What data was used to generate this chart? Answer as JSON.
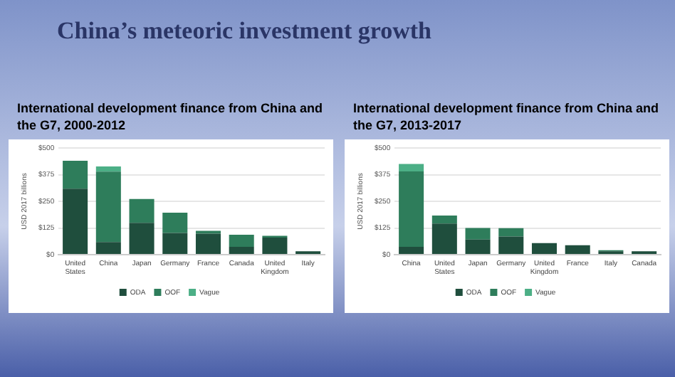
{
  "chart_data": [
    {
      "type": "bar",
      "title": "China’s meteoric investment growth",
      "subtitle": "International development finance from China and the G7, 2000-2012",
      "ylabel": "USD 2017 billions",
      "stacked": true,
      "grid": "y",
      "legend": "bottom",
      "categories": [
        "United States",
        "China",
        "Japan",
        "Germany",
        "France",
        "Canada",
        "United Kingdom",
        "Italy"
      ],
      "series": [
        {
          "name": "ODA",
          "color": "#1f4e3d",
          "values": [
            309,
            59,
            149,
            102,
            98,
            37,
            80,
            16
          ]
        },
        {
          "name": "OOF",
          "color": "#2e7d5b",
          "values": [
            131,
            330,
            112,
            95,
            14,
            56,
            8,
            0
          ]
        },
        {
          "name": "Vague",
          "color": "#4caf86",
          "values": [
            0,
            24,
            0,
            0,
            0,
            0,
            0,
            0
          ]
        }
      ],
      "ylim": [
        0,
        500
      ],
      "yticks": [
        {
          "value": 0,
          "label": "$0"
        },
        {
          "value": 125,
          "label": "$125"
        },
        {
          "value": 250,
          "label": "$250"
        },
        {
          "value": 375,
          "label": "$375"
        },
        {
          "value": 500,
          "label": "$500"
        }
      ]
    },
    {
      "type": "bar",
      "subtitle": "International development finance from China and the G7, 2013-2017",
      "ylabel": "USD 2017 billions",
      "stacked": true,
      "grid": "y",
      "legend": "bottom",
      "categories": [
        "China",
        "United States",
        "Japan",
        "Germany",
        "United Kingdom",
        "France",
        "Italy",
        "Canada"
      ],
      "series": [
        {
          "name": "ODA",
          "color": "#1f4e3d",
          "values": [
            37,
            146,
            71,
            85,
            54,
            44,
            16,
            16
          ]
        },
        {
          "name": "OOF",
          "color": "#2e7d5b",
          "values": [
            353,
            37,
            54,
            39,
            0,
            0,
            5,
            0
          ]
        },
        {
          "name": "Vague",
          "color": "#4caf86",
          "values": [
            35,
            0,
            0,
            0,
            0,
            0,
            0,
            0
          ]
        }
      ],
      "ylim": [
        0,
        500
      ],
      "yticks": [
        {
          "value": 0,
          "label": "$0"
        },
        {
          "value": 125,
          "label": "$125"
        },
        {
          "value": 250,
          "label": "$250"
        },
        {
          "value": 375,
          "label": "$375"
        },
        {
          "value": 500,
          "label": "$500"
        }
      ]
    }
  ]
}
